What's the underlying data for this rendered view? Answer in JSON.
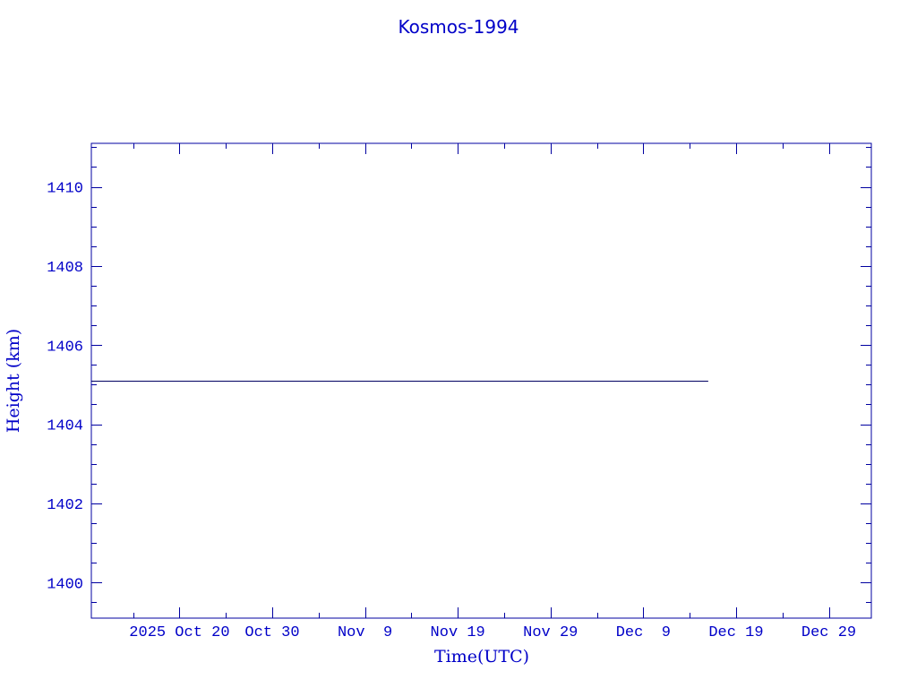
{
  "chart_data": {
    "type": "line",
    "title": "Kosmos-1994",
    "xlabel": "Time(UTC)",
    "ylabel": "Height (km)",
    "xlim": [
      "2025-10-10T12:00",
      "2026-01-02T14:00"
    ],
    "ylim": [
      1399.1,
      1411.1
    ],
    "x_ticks": [
      {
        "date": "2025-10-20",
        "label": "2025 Oct 20"
      },
      {
        "date": "2025-10-30",
        "label": "Oct 30"
      },
      {
        "date": "2025-11-09",
        "label": "Nov  9"
      },
      {
        "date": "2025-11-19",
        "label": "Nov 19"
      },
      {
        "date": "2025-11-29",
        "label": "Nov 29"
      },
      {
        "date": "2025-12-09",
        "label": "Dec  9"
      },
      {
        "date": "2025-12-19",
        "label": "Dec 19"
      },
      {
        "date": "2025-12-29",
        "label": "Dec 29"
      }
    ],
    "y_ticks": [
      1400,
      1402,
      1404,
      1406,
      1408,
      1410
    ],
    "grid": false,
    "series": [
      {
        "x": [
          "2025-10-10T12:00",
          "2025-12-16T00:00"
        ],
        "y": [
          1405.1,
          1405.1
        ],
        "color": "#000060"
      }
    ],
    "colors": {
      "axis": "#0000a0",
      "text": "#0000c8"
    }
  }
}
